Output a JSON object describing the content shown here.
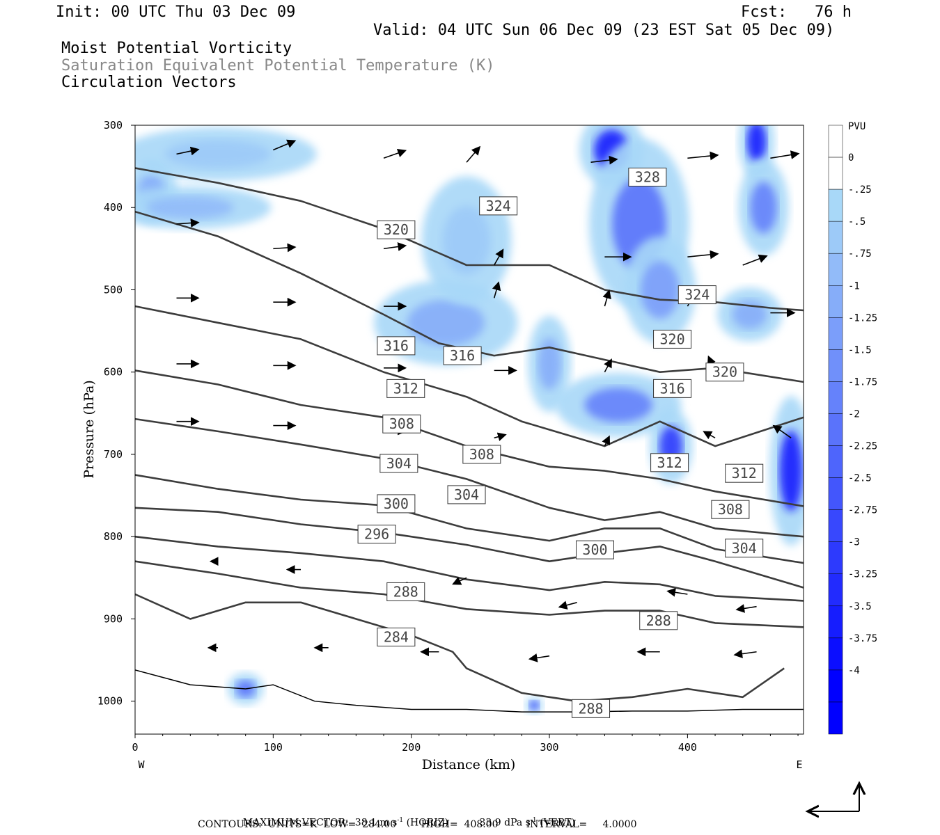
{
  "header": {
    "init": "Init: 00 UTC Thu 03 Dec 09",
    "fcst": "Fcst:   76 h",
    "valid": "Valid: 04 UTC Sun 06 Dec 09 (23 EST Sat 05 Dec 09)",
    "field1": "Moist Potential Vorticity",
    "field2": "Saturation Equivalent Potential Temperature (K)",
    "field3": "Circulation Vectors"
  },
  "footer": {
    "max_vector_label": "MAXIMUM VECTOR:",
    "max_horiz": "38.1 m s",
    "horiz_exp": "-1",
    "horiz_tag": "(HORIZ)",
    "max_vert": "33.9 dPa s",
    "vert_exp": "-1",
    "vert_tag": "(VERT)",
    "contours_line": "CONTOURS:  UNITS=K  LOW=  284.00        HIGH=  408.00         INTERVAL=     4.0000"
  },
  "colors": {
    "contour": "#3c3c3c",
    "shade_light": "#a8d8f8",
    "shade_dark": "#0000ff"
  },
  "chart_data": {
    "type": "contour",
    "xlabel": "Distance (km)",
    "ylabel": "Pressure (hPa)",
    "x_end_labels": [
      "W",
      "E"
    ],
    "xlim": [
      0,
      484
    ],
    "ylim": [
      1040,
      300
    ],
    "x_ticks": [
      0,
      100,
      200,
      300,
      400
    ],
    "y_ticks": [
      300,
      400,
      500,
      600,
      700,
      800,
      900,
      1000
    ],
    "colorbar": {
      "unit": "PVU",
      "levels": [
        "0",
        "-.25",
        "-.5",
        "-.75",
        "-1",
        "-1.25",
        "-1.5",
        "-1.75",
        "-2",
        "-2.25",
        "-2.5",
        "-2.75",
        "-3",
        "-3.25",
        "-3.5",
        "-3.75",
        "-4"
      ]
    },
    "contour_labels": [
      {
        "text": "328",
        "x": 371,
        "p": 363
      },
      {
        "text": "324",
        "x": 263,
        "p": 398
      },
      {
        "text": "320",
        "x": 189,
        "p": 427
      },
      {
        "text": "324",
        "x": 407,
        "p": 506
      },
      {
        "text": "320",
        "x": 389,
        "p": 560
      },
      {
        "text": "320",
        "x": 427,
        "p": 600
      },
      {
        "text": "316",
        "x": 189,
        "p": 568
      },
      {
        "text": "316",
        "x": 237,
        "p": 580
      },
      {
        "text": "316",
        "x": 389,
        "p": 620
      },
      {
        "text": "312",
        "x": 196,
        "p": 620
      },
      {
        "text": "308",
        "x": 193,
        "p": 663
      },
      {
        "text": "308",
        "x": 251,
        "p": 700
      },
      {
        "text": "312",
        "x": 387,
        "p": 710
      },
      {
        "text": "312",
        "x": 441,
        "p": 723
      },
      {
        "text": "304",
        "x": 191,
        "p": 711
      },
      {
        "text": "304",
        "x": 240,
        "p": 749
      },
      {
        "text": "308",
        "x": 431,
        "p": 767
      },
      {
        "text": "300",
        "x": 189,
        "p": 760
      },
      {
        "text": "296",
        "x": 175,
        "p": 797
      },
      {
        "text": "300",
        "x": 333,
        "p": 816
      },
      {
        "text": "304",
        "x": 441,
        "p": 814
      },
      {
        "text": "288",
        "x": 196,
        "p": 867
      },
      {
        "text": "288",
        "x": 379,
        "p": 902
      },
      {
        "text": "284",
        "x": 189,
        "p": 922
      },
      {
        "text": "288",
        "x": 330,
        "p": 1009
      }
    ],
    "contours": [
      {
        "x": [
          0,
          60,
          120,
          180,
          240,
          300,
          340,
          380,
          420,
          460,
          484
        ],
        "p": [
          352,
          370,
          392,
          426,
          470,
          470,
          500,
          512,
          515,
          522,
          525
        ]
      },
      {
        "x": [
          0,
          60,
          120,
          180,
          220,
          260,
          300,
          340,
          380,
          420,
          484
        ],
        "p": [
          405,
          435,
          480,
          530,
          565,
          580,
          570,
          585,
          600,
          595,
          612
        ]
      },
      {
        "x": [
          0,
          60,
          120,
          180,
          240,
          280,
          300,
          340,
          380,
          420,
          484
        ],
        "p": [
          520,
          540,
          560,
          600,
          630,
          660,
          670,
          690,
          660,
          690,
          655
        ]
      },
      {
        "x": [
          0,
          60,
          120,
          180,
          240,
          300,
          340,
          380,
          420,
          484
        ],
        "p": [
          598,
          615,
          640,
          655,
          690,
          715,
          720,
          730,
          745,
          763
        ]
      },
      {
        "x": [
          0,
          60,
          120,
          180,
          240,
          300,
          340,
          380,
          420,
          484
        ],
        "p": [
          657,
          672,
          688,
          705,
          730,
          765,
          780,
          770,
          790,
          800
        ]
      },
      {
        "x": [
          0,
          60,
          120,
          180,
          240,
          300,
          340,
          380,
          420,
          484
        ],
        "p": [
          725,
          742,
          755,
          762,
          790,
          805,
          790,
          790,
          815,
          832
        ]
      },
      {
        "x": [
          0,
          60,
          120,
          180,
          240,
          300,
          340,
          380,
          420,
          484
        ],
        "p": [
          765,
          770,
          785,
          795,
          810,
          830,
          820,
          812,
          830,
          862
        ]
      },
      {
        "x": [
          0,
          60,
          120,
          180,
          240,
          300,
          340,
          380,
          420,
          484
        ],
        "p": [
          800,
          812,
          820,
          830,
          852,
          865,
          855,
          858,
          872,
          878
        ]
      },
      {
        "x": [
          0,
          60,
          120,
          180,
          240,
          300,
          340,
          380,
          420,
          484
        ],
        "p": [
          830,
          845,
          862,
          870,
          888,
          895,
          890,
          890,
          905,
          910
        ]
      },
      {
        "x": [
          0,
          40,
          80,
          120,
          160,
          200,
          230,
          240,
          280,
          320,
          360,
          400,
          440,
          470
        ],
        "p": [
          870,
          900,
          880,
          880,
          900,
          920,
          940,
          960,
          990,
          1000,
          995,
          985,
          995,
          960
        ]
      }
    ],
    "surface": {
      "x": [
        0,
        40,
        80,
        100,
        130,
        160,
        200,
        240,
        280,
        320,
        360,
        400,
        440,
        484
      ],
      "p": [
        962,
        980,
        985,
        980,
        1000,
        1005,
        1010,
        1010,
        1013,
        1013,
        1012,
        1012,
        1010,
        1010
      ]
    },
    "pv_blobs": [
      {
        "x": 12,
        "p": 380,
        "rx": 14,
        "rp": 30,
        "v": -1.0
      },
      {
        "x": 60,
        "p": 335,
        "rx": 55,
        "rp": 25,
        "v": -0.5
      },
      {
        "x": 40,
        "p": 400,
        "rx": 45,
        "rp": 20,
        "v": -0.75
      },
      {
        "x": 225,
        "p": 540,
        "rx": 40,
        "rp": 40,
        "v": -1.0
      },
      {
        "x": 240,
        "p": 440,
        "rx": 25,
        "rp": 60,
        "v": -0.5
      },
      {
        "x": 300,
        "p": 590,
        "rx": 12,
        "rp": 45,
        "v": -1.0
      },
      {
        "x": 345,
        "p": 330,
        "rx": 18,
        "rp": 35,
        "v": -3.5
      },
      {
        "x": 365,
        "p": 420,
        "rx": 28,
        "rp": 80,
        "v": -2.0
      },
      {
        "x": 380,
        "p": 500,
        "rx": 20,
        "rp": 50,
        "v": -1.25
      },
      {
        "x": 450,
        "p": 320,
        "rx": 10,
        "rp": 35,
        "v": -3.5
      },
      {
        "x": 455,
        "p": 400,
        "rx": 14,
        "rp": 45,
        "v": -1.75
      },
      {
        "x": 350,
        "p": 640,
        "rx": 35,
        "rp": 30,
        "v": -1.75
      },
      {
        "x": 388,
        "p": 690,
        "rx": 12,
        "rp": 35,
        "v": -3.0
      },
      {
        "x": 475,
        "p": 720,
        "rx": 12,
        "rp": 70,
        "v": -3.5
      },
      {
        "x": 445,
        "p": 530,
        "rx": 18,
        "rp": 25,
        "v": -1.0
      },
      {
        "x": 80,
        "p": 985,
        "rx": 10,
        "rp": 15,
        "v": -2.0
      },
      {
        "x": 289,
        "p": 1005,
        "rx": 5,
        "rp": 8,
        "v": -3.0
      }
    ],
    "vectors": [
      {
        "x": 30,
        "p": 335,
        "u": 1,
        "v": 0.3
      },
      {
        "x": 100,
        "p": 330,
        "u": 1,
        "v": 0.6
      },
      {
        "x": 180,
        "p": 340,
        "u": 1,
        "v": 0.5
      },
      {
        "x": 240,
        "p": 345,
        "u": 0.6,
        "v": 1
      },
      {
        "x": 330,
        "p": 345,
        "u": 1.2,
        "v": 0.2
      },
      {
        "x": 400,
        "p": 340,
        "u": 1.4,
        "v": 0.2
      },
      {
        "x": 460,
        "p": 340,
        "u": 1.3,
        "v": 0.3
      },
      {
        "x": 30,
        "p": 420,
        "u": 1,
        "v": 0.1
      },
      {
        "x": 100,
        "p": 450,
        "u": 1,
        "v": 0.1
      },
      {
        "x": 180,
        "p": 450,
        "u": 1,
        "v": 0.2
      },
      {
        "x": 260,
        "p": 470,
        "u": 0.4,
        "v": 1
      },
      {
        "x": 340,
        "p": 460,
        "u": 1.2,
        "v": 0
      },
      {
        "x": 400,
        "p": 460,
        "u": 1.4,
        "v": 0.2
      },
      {
        "x": 440,
        "p": 470,
        "u": 1.1,
        "v": 0.6
      },
      {
        "x": 30,
        "p": 510,
        "u": 1,
        "v": 0
      },
      {
        "x": 100,
        "p": 515,
        "u": 1,
        "v": 0
      },
      {
        "x": 180,
        "p": 520,
        "u": 1,
        "v": 0
      },
      {
        "x": 260,
        "p": 510,
        "u": 0.2,
        "v": 1
      },
      {
        "x": 340,
        "p": 520,
        "u": 0.2,
        "v": 1
      },
      {
        "x": 400,
        "p": 520,
        "u": 0.4,
        "v": 1
      },
      {
        "x": 460,
        "p": 528,
        "u": 1.1,
        "v": 0
      },
      {
        "x": 30,
        "p": 590,
        "u": 1,
        "v": 0
      },
      {
        "x": 100,
        "p": 592,
        "u": 1,
        "v": 0
      },
      {
        "x": 180,
        "p": 595,
        "u": 1,
        "v": 0
      },
      {
        "x": 260,
        "p": 598,
        "u": 1,
        "v": 0
      },
      {
        "x": 340,
        "p": 600,
        "u": 0.3,
        "v": 0.8
      },
      {
        "x": 420,
        "p": 600,
        "u": -0.3,
        "v": 1
      },
      {
        "x": 30,
        "p": 660,
        "u": 1,
        "v": 0
      },
      {
        "x": 100,
        "p": 665,
        "u": 1,
        "v": 0
      },
      {
        "x": 180,
        "p": 670,
        "u": 1,
        "v": -0.1
      },
      {
        "x": 260,
        "p": 680,
        "u": 0.5,
        "v": 0.2
      },
      {
        "x": 340,
        "p": 690,
        "u": 0.2,
        "v": 0.6
      },
      {
        "x": 420,
        "p": 680,
        "u": -0.5,
        "v": 0.4
      },
      {
        "x": 475,
        "p": 680,
        "u": -0.8,
        "v": 0.8
      },
      {
        "x": 60,
        "p": 830,
        "u": -0.3,
        "v": 0
      },
      {
        "x": 120,
        "p": 840,
        "u": -0.6,
        "v": 0
      },
      {
        "x": 200,
        "p": 860,
        "u": -0.5,
        "v": 0
      },
      {
        "x": 240,
        "p": 850,
        "u": -0.6,
        "v": -0.4
      },
      {
        "x": 320,
        "p": 880,
        "u": -0.8,
        "v": -0.3
      },
      {
        "x": 400,
        "p": 870,
        "u": -0.9,
        "v": 0.2
      },
      {
        "x": 450,
        "p": 885,
        "u": -0.9,
        "v": -0.2
      },
      {
        "x": 60,
        "p": 935,
        "u": -0.4,
        "v": 0
      },
      {
        "x": 140,
        "p": 935,
        "u": -0.6,
        "v": 0
      },
      {
        "x": 220,
        "p": 940,
        "u": -0.8,
        "v": 0
      },
      {
        "x": 300,
        "p": 945,
        "u": -0.9,
        "v": -0.2
      },
      {
        "x": 380,
        "p": 940,
        "u": -1,
        "v": 0
      },
      {
        "x": 450,
        "p": 940,
        "u": -1,
        "v": -0.2
      }
    ]
  }
}
